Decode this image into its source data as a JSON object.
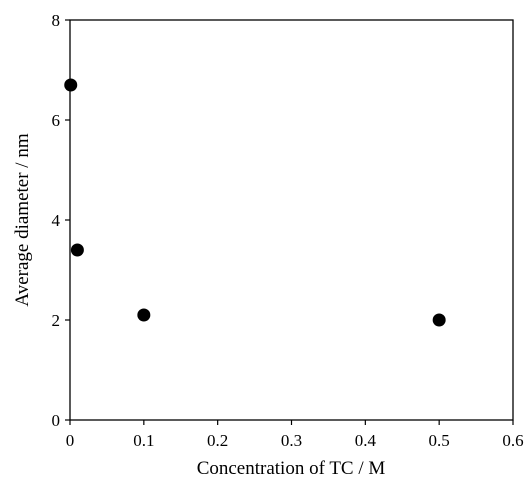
{
  "chart_data": {
    "type": "scatter",
    "xlabel": "Concentration of TC / M",
    "ylabel": "Average diameter / nm",
    "xlim": [
      0,
      0.6
    ],
    "ylim": [
      0,
      8
    ],
    "xticks": [
      0,
      0.1,
      0.2,
      0.3,
      0.4,
      0.5,
      0.6
    ],
    "yticks": [
      0,
      2,
      4,
      6,
      8
    ],
    "xtick_labels": [
      "0",
      "0.1",
      "0.2",
      "0.3",
      "0.4",
      "0.5",
      "0.6"
    ],
    "ytick_labels": [
      "0",
      "2",
      "4",
      "6",
      "8"
    ],
    "grid": false,
    "legend": "none",
    "series": [
      {
        "x": [
          0.001,
          0.01,
          0.1,
          0.5
        ],
        "y": [
          6.7,
          3.4,
          2.1,
          2.0
        ],
        "color": "#000000",
        "marker": "filled-circle"
      }
    ]
  }
}
